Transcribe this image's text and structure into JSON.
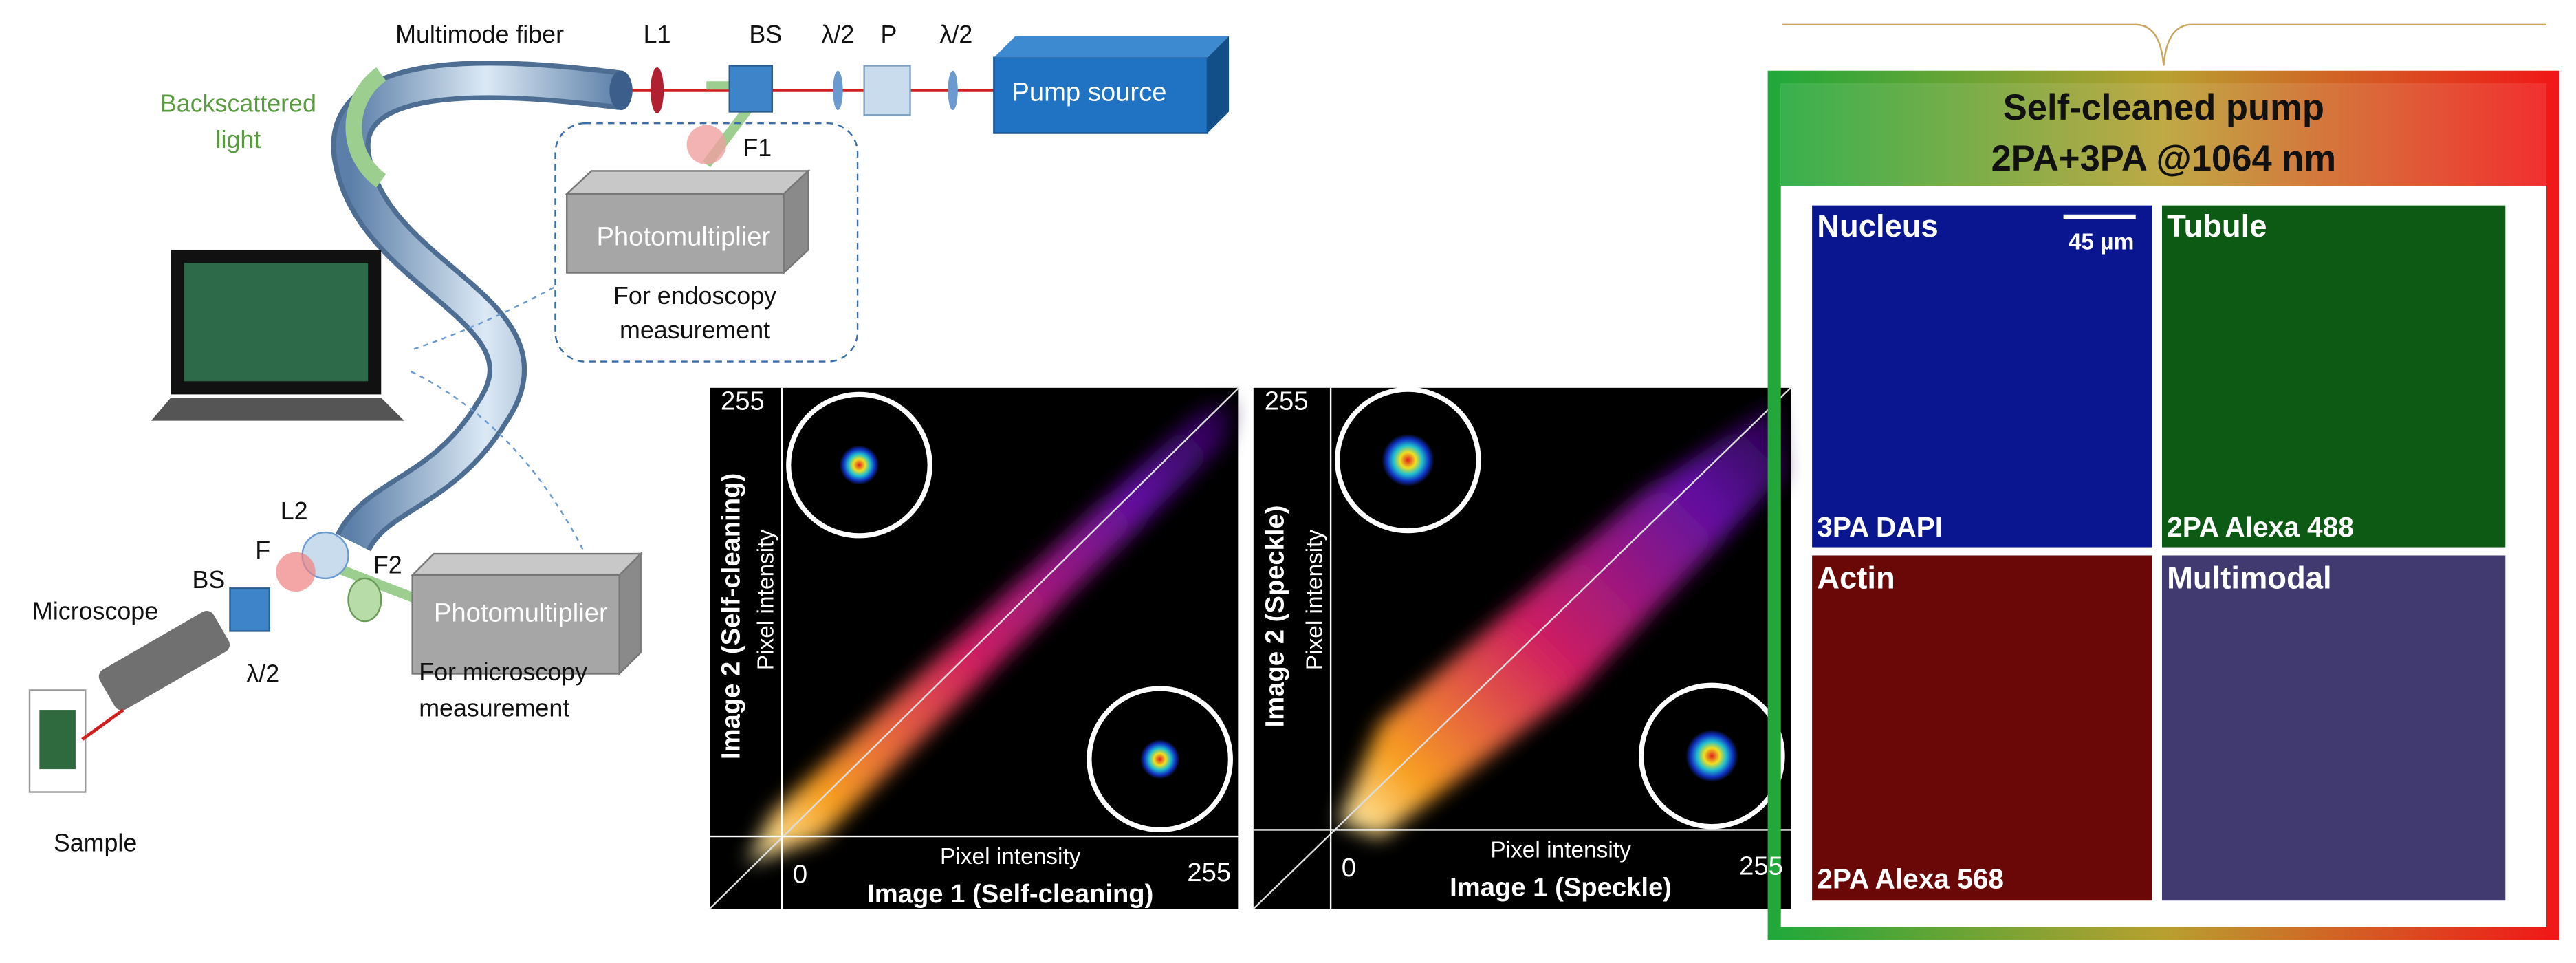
{
  "setup": {
    "fiber": "Multimode fiber",
    "l1": "L1",
    "bs_top": "BS",
    "half_wave_1": "λ/2",
    "polarizer": "P",
    "half_wave_2": "λ/2",
    "pump": "Pump source",
    "backscattered": [
      "Backscattered",
      "light"
    ],
    "f1": "F1",
    "pmt_endoscopy": "Photomultiplier",
    "endoscopy_note": [
      "For endoscopy",
      "measurement"
    ],
    "l2": "L2",
    "f": "F",
    "f2": "F2",
    "bs_bottom": "BS",
    "microscope": "Microscope",
    "half_wave_3": "λ/2",
    "pmt_microscopy": "Photomultiplier",
    "microscopy_note": [
      "For microscopy",
      "measurement"
    ],
    "sample": "Sample"
  },
  "plots": [
    {
      "y_max": "255",
      "x_min": "0",
      "x_max": "255",
      "x_label": "Pixel intensity",
      "x_title": "Image 1 (Self-cleaning)",
      "y_title": "Image 2 (Self-cleaning)",
      "y_label": "Pixel intensity"
    },
    {
      "y_max": "255",
      "x_min": "0",
      "x_max": "255",
      "x_label": "Pixel intensity",
      "x_title": "Image 1 (Speckle)",
      "y_title": "Image 2 (Speckle)",
      "y_label": "Pixel intensity"
    }
  ],
  "imaging": {
    "title": [
      "Self-cleaned pump",
      "2PA+3PA @1064 nm"
    ],
    "scale_bar": "45 µm",
    "panels": [
      {
        "name": "Nucleus",
        "stain": "3PA DAPI"
      },
      {
        "name": "Tubule",
        "stain": "2PA Alexa 488"
      },
      {
        "name": "Actin",
        "stain": "2PA Alexa 568"
      },
      {
        "name": "Multimodal",
        "stain": ""
      }
    ]
  }
}
